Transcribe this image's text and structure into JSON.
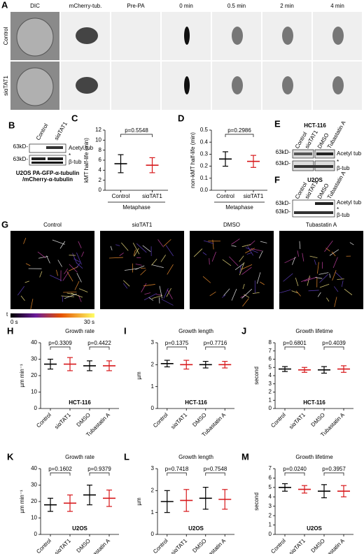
{
  "panel_a": {
    "letter": "A",
    "columns": [
      "DIC",
      "mCherry-tub.",
      "Pre-PA",
      "0 min",
      "0.5 min",
      "2 min",
      "4 min"
    ],
    "rows": [
      "Control",
      "siαTAT1"
    ]
  },
  "panel_b": {
    "letter": "B",
    "lanes": [
      "Control",
      "siαTAT1"
    ],
    "markers": [
      "63kD-",
      "63kD-"
    ],
    "bands": [
      "Acetyl tub",
      "*",
      "β-tub"
    ],
    "caption": [
      "U2OS PA-GFP-α-tubulin",
      "/mCherry-α-tubulin"
    ]
  },
  "panel_e": {
    "letter": "E",
    "title": "HCT-116",
    "lanes": [
      "Control",
      "siαTAT1",
      "DMSO",
      "Tubastatin A"
    ],
    "markers": [
      "63kD-",
      "63kD-"
    ],
    "bands": [
      "Acetyl tub",
      "*",
      "β-tub"
    ]
  },
  "panel_f": {
    "letter": "F",
    "title": "U2OS",
    "lanes": [
      "Control",
      "siαTAT1",
      "DMSO",
      "Tubastatin A"
    ],
    "markers": [
      "63kD-",
      "63kD-"
    ],
    "bands": [
      "Acetyl tub",
      "*",
      "β-tub"
    ]
  },
  "panel_g": {
    "letter": "G",
    "columns": [
      "Control",
      "siαTAT1",
      "DMSO",
      "Tubastatin A"
    ],
    "colorbar": {
      "axis": "t",
      "start": "0 s",
      "end": "30 s"
    }
  },
  "chart_data": [
    {
      "type": "dot",
      "letter": "C",
      "y_label": "kMT half-life (min)",
      "categories": [
        "Control",
        "siαTAT1"
      ],
      "values": [
        5.3,
        5.0
      ],
      "errors": [
        1.8,
        1.5
      ],
      "colors": [
        "#000000",
        "#d7191c"
      ],
      "ylim": [
        0,
        12
      ],
      "yticks": [
        0,
        2,
        4,
        6,
        8,
        10,
        12
      ],
      "comparisons": [
        "p=0.5548"
      ],
      "group_label": "Metaphase"
    },
    {
      "type": "dot",
      "letter": "D",
      "y_label": "non-kMT half-life (min)",
      "categories": [
        "Control",
        "siαTAT1"
      ],
      "values": [
        0.26,
        0.24
      ],
      "errors": [
        0.06,
        0.05
      ],
      "colors": [
        "#000000",
        "#d7191c"
      ],
      "ylim": [
        0,
        0.5
      ],
      "yticks": [
        {
          "value": 0,
          "label": "0.0"
        },
        0.1,
        0.2,
        0.3,
        0.4,
        0.5
      ],
      "comparisons": [
        "p=0.2986"
      ],
      "group_label": "Metaphase"
    },
    {
      "type": "dot",
      "letter": "H",
      "title": "Growth rate",
      "y_label": "µm min⁻¹",
      "subtitle": "HCT-116",
      "categories": [
        "Control",
        "siαTAT1",
        "DMSO",
        "Tubastatin A"
      ],
      "values": [
        27,
        27,
        26,
        26
      ],
      "errors": [
        3,
        4,
        3,
        3
      ],
      "colors": [
        "#000000",
        "#d7191c",
        "#000000",
        "#d7191c"
      ],
      "ylim": [
        0,
        40
      ],
      "yticks": [
        0,
        10,
        20,
        30,
        40
      ],
      "comparisons": [
        "p=0.3309",
        "p=0.4422"
      ]
    },
    {
      "type": "dot",
      "letter": "I",
      "title": "Growth length",
      "y_label": "µm",
      "subtitle": "HCT-116",
      "categories": [
        "Control",
        "siαTAT1",
        "DMSO",
        "Tubastatin A"
      ],
      "values": [
        2.05,
        2.0,
        2.0,
        2.0
      ],
      "errors": [
        0.15,
        0.2,
        0.15,
        0.15
      ],
      "colors": [
        "#000000",
        "#d7191c",
        "#000000",
        "#d7191c"
      ],
      "ylim": [
        0,
        3
      ],
      "yticks": [
        0,
        1,
        2,
        3
      ],
      "comparisons": [
        "p=0.1375",
        "p=0.7716"
      ]
    },
    {
      "type": "dot",
      "letter": "J",
      "title": "Growth lifetime",
      "y_label": "second",
      "subtitle": "HCT-116",
      "categories": [
        "Control",
        "siαTAT1",
        "DMSO",
        "Tubastatin A"
      ],
      "values": [
        4.8,
        4.7,
        4.7,
        4.8
      ],
      "errors": [
        0.3,
        0.3,
        0.4,
        0.4
      ],
      "colors": [
        "#000000",
        "#d7191c",
        "#000000",
        "#d7191c"
      ],
      "ylim": [
        0,
        8
      ],
      "yticks": [
        0,
        1,
        2,
        3,
        4,
        5,
        6,
        7,
        8
      ],
      "comparisons": [
        "p=0.6801",
        "p=0.4039"
      ]
    },
    {
      "type": "dot",
      "letter": "K",
      "title": "Growth rate",
      "y_label": "µm min⁻¹",
      "subtitle": "U2OS",
      "categories": [
        "Control",
        "siαTAT1",
        "DMSO",
        "Tubastatin A"
      ],
      "values": [
        18,
        19,
        24,
        22
      ],
      "errors": [
        4,
        5,
        6,
        5
      ],
      "colors": [
        "#000000",
        "#d7191c",
        "#000000",
        "#d7191c"
      ],
      "ylim": [
        0,
        40
      ],
      "yticks": [
        0,
        10,
        20,
        30,
        40
      ],
      "comparisons": [
        "p=0.1602",
        "p=0.9379"
      ]
    },
    {
      "type": "dot",
      "letter": "L",
      "title": "Growth length",
      "y_label": "µm",
      "subtitle": "U2OS",
      "categories": [
        "Control",
        "siαTAT1",
        "DMSO",
        "Tubastatin A"
      ],
      "values": [
        1.5,
        1.55,
        1.65,
        1.6
      ],
      "errors": [
        0.5,
        0.5,
        0.5,
        0.45
      ],
      "colors": [
        "#000000",
        "#d7191c",
        "#000000",
        "#d7191c"
      ],
      "ylim": [
        0,
        3
      ],
      "yticks": [
        0,
        1,
        2,
        3
      ],
      "comparisons": [
        "p=0.7418",
        "p=0.7548"
      ]
    },
    {
      "type": "dot",
      "letter": "M",
      "title": "Growth lifetime",
      "y_label": "second",
      "subtitle": "U2OS",
      "categories": [
        "Control",
        "siαTAT1",
        "DMSO",
        "Tubastatin A"
      ],
      "values": [
        5.0,
        4.8,
        4.6,
        4.6
      ],
      "errors": [
        0.4,
        0.4,
        0.7,
        0.6
      ],
      "colors": [
        "#000000",
        "#d7191c",
        "#000000",
        "#d7191c"
      ],
      "ylim": [
        0,
        7
      ],
      "yticks": [
        0,
        1,
        2,
        3,
        4,
        5,
        6,
        7
      ],
      "comparisons": [
        "p=0.0240",
        "p=0.3957"
      ]
    }
  ]
}
